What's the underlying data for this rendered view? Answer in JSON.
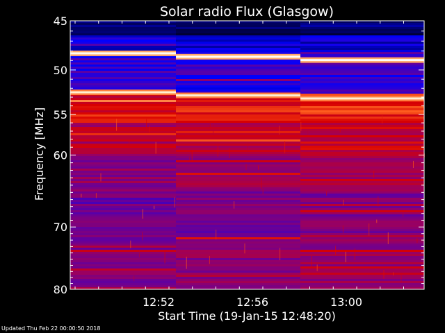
{
  "chart_data": {
    "type": "heatmap",
    "title": "Solar radio Flux (Glasgow)",
    "xlabel": "Start Time (19-Jan-15 12:48:20)",
    "ylabel": "Frequency [MHz]",
    "x_ticks": [
      "12:52",
      "12:56",
      "13:00"
    ],
    "y_ticks": [
      45,
      50,
      55,
      60,
      70,
      80
    ],
    "ylim": [
      45,
      80
    ],
    "y_scale": "log",
    "y_reversed": true,
    "grid": false,
    "colormap": [
      "#000000",
      "#00007f",
      "#0000ff",
      "#6000a0",
      "#9a0060",
      "#d80000",
      "#ff6020",
      "#ffe0a0",
      "#ffffff"
    ],
    "bright_bands_mhz": [
      {
        "freq": 48.6,
        "intensity": 1.0
      },
      {
        "freq": 52.8,
        "intensity": 0.95
      }
    ]
  },
  "footer": {
    "updated": "Updated Thu Feb 22 00:00:50 2018"
  }
}
